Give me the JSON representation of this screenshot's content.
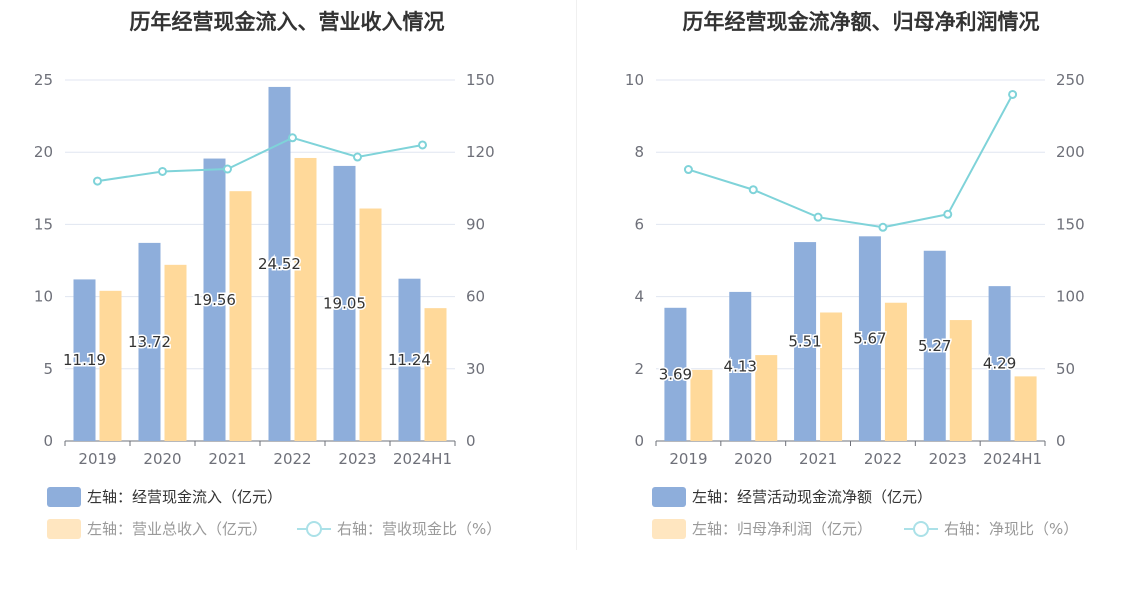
{
  "colors": {
    "bar1": "#8eaedb",
    "bar2": "#ffd99a",
    "line": "#7fd3d9"
  },
  "chart_data": [
    {
      "type": "bar",
      "title": "历年经营现金流入、营业收入情况",
      "categories": [
        "2019",
        "2020",
        "2021",
        "2022",
        "2023",
        "2024H1"
      ],
      "left_axis": {
        "ylim": [
          0,
          25
        ],
        "ticks": [
          "0",
          "5",
          "10",
          "15",
          "20",
          "25"
        ]
      },
      "right_axis": {
        "ylim": [
          0,
          150
        ],
        "ticks": [
          "0",
          "30",
          "60",
          "90",
          "120",
          "150"
        ]
      },
      "series": [
        {
          "name": "左轴：经营现金流入（亿元）",
          "type": "bar",
          "axis": "left",
          "values": [
            11.19,
            13.72,
            19.56,
            24.52,
            19.05,
            11.24
          ],
          "labels": [
            "11.19",
            "13.72",
            "19.56",
            "24.52",
            "19.05",
            "11.24"
          ]
        },
        {
          "name": "左轴：营业总收入（亿元）",
          "type": "bar",
          "axis": "left",
          "values": [
            10.4,
            12.2,
            17.3,
            19.6,
            16.1,
            9.2
          ]
        },
        {
          "name": "右轴：营收现金比（%）",
          "type": "line",
          "axis": "right",
          "values": [
            108,
            112,
            113,
            126,
            118,
            123
          ]
        }
      ]
    },
    {
      "type": "bar",
      "title": "历年经营现金流净额、归母净利润情况",
      "categories": [
        "2019",
        "2020",
        "2021",
        "2022",
        "2023",
        "2024H1"
      ],
      "left_axis": {
        "ylim": [
          0,
          10
        ],
        "ticks": [
          "0",
          "2",
          "4",
          "6",
          "8",
          "10"
        ]
      },
      "right_axis": {
        "ylim": [
          0,
          250
        ],
        "ticks": [
          "0",
          "50",
          "100",
          "150",
          "200",
          "250"
        ]
      },
      "series": [
        {
          "name": "左轴：经营活动现金流净额（亿元）",
          "type": "bar",
          "axis": "left",
          "values": [
            3.69,
            4.13,
            5.51,
            5.67,
            5.27,
            4.29
          ],
          "labels": [
            "3.69",
            "4.13",
            "5.51",
            "5.67",
            "5.27",
            "4.29"
          ]
        },
        {
          "name": "左轴：归母净利润（亿元）",
          "type": "bar",
          "axis": "left",
          "values": [
            1.97,
            2.38,
            3.56,
            3.83,
            3.35,
            1.79
          ]
        },
        {
          "name": "右轴：净现比（%）",
          "type": "line",
          "axis": "right",
          "values": [
            188,
            174,
            155,
            148,
            157,
            240
          ]
        }
      ]
    }
  ]
}
